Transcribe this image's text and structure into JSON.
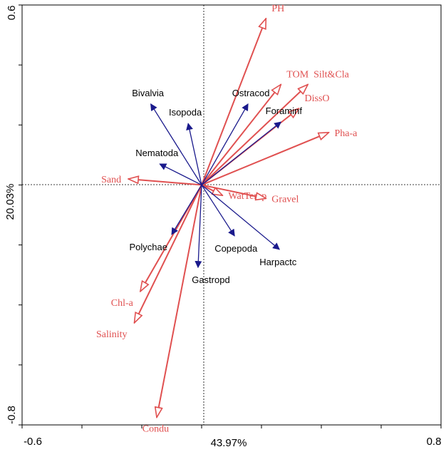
{
  "chart_data": {
    "type": "biplot",
    "xlabel": "43.97%",
    "ylabel": "20.03%",
    "xlim": [
      -0.6,
      0.8
    ],
    "ylim": [
      -0.8,
      0.6
    ],
    "x_tick_labels": [
      {
        "value": -0.6,
        "label": "-0.6"
      },
      {
        "value": 0.8,
        "label": "0.8"
      }
    ],
    "y_tick_labels": [
      {
        "value": 0.6,
        "label": "0.6"
      },
      {
        "value": -0.8,
        "label": "-0.8"
      }
    ],
    "colors": {
      "species": "#1a1a8c",
      "environment": "#e05050",
      "text": "#000000"
    },
    "species": [
      {
        "label": "Bivalvia",
        "x": -0.17,
        "y": 0.27
      },
      {
        "label": "Isopoda",
        "x": -0.045,
        "y": 0.205
      },
      {
        "label": "Ostracod",
        "x": 0.155,
        "y": 0.27
      },
      {
        "label": "Foraminf",
        "x": 0.265,
        "y": 0.21
      },
      {
        "label": "Nematoda",
        "x": -0.14,
        "y": 0.07
      },
      {
        "label": "Polychae",
        "x": -0.1,
        "y": -0.165
      },
      {
        "label": "Copepoda",
        "x": 0.11,
        "y": -0.17
      },
      {
        "label": "Harpactc",
        "x": 0.26,
        "y": -0.215
      },
      {
        "label": "Gastropd",
        "x": -0.012,
        "y": -0.275
      }
    ],
    "environment": [
      {
        "label": "PH",
        "x": 0.215,
        "y": 0.555
      },
      {
        "label": "TOM",
        "x": 0.265,
        "y": 0.335
      },
      {
        "label": "Silt&Cla",
        "x": 0.355,
        "y": 0.335
      },
      {
        "label": "DissO",
        "x": 0.325,
        "y": 0.255
      },
      {
        "label": "Pha-a",
        "x": 0.425,
        "y": 0.175
      },
      {
        "label": "Sand",
        "x": -0.245,
        "y": 0.02
      },
      {
        "label": "WatTemp",
        "x": 0.07,
        "y": -0.035
      },
      {
        "label": "Gravel",
        "x": 0.215,
        "y": -0.045
      },
      {
        "label": "Chl-a",
        "x": -0.205,
        "y": -0.355
      },
      {
        "label": "Salinity",
        "x": -0.225,
        "y": -0.46
      },
      {
        "label": "Condu",
        "x": -0.15,
        "y": -0.775
      }
    ]
  }
}
